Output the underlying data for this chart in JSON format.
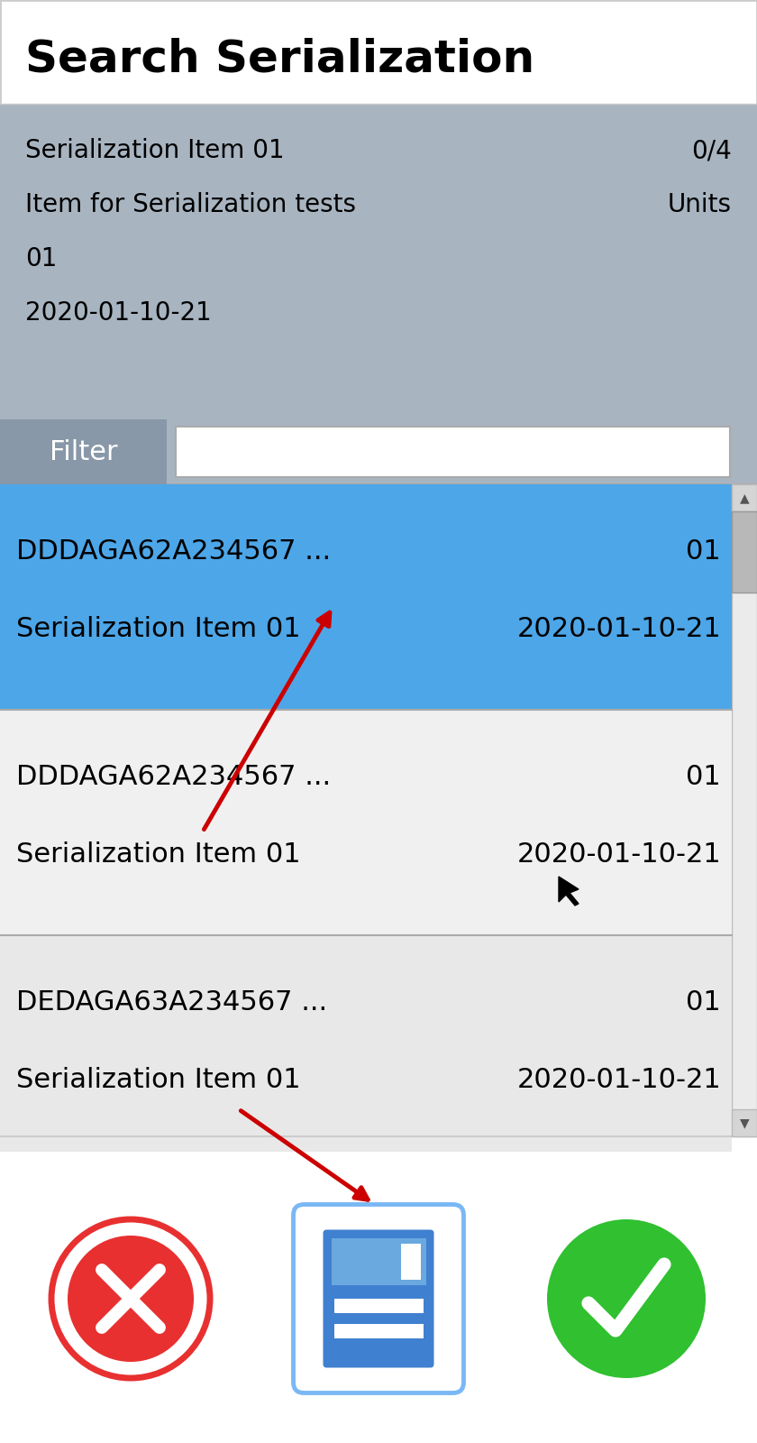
{
  "title": "Search Serialization",
  "title_fontsize": 36,
  "title_fontweight": "bold",
  "bg_color": "#ffffff",
  "header_bg": "#a8b4c0",
  "filter_label": "Filter",
  "filter_bg": "#a8b4c0",
  "filter_label_bg": "#8898a8",
  "input_bg": "#ffffff",
  "header_lines": [
    [
      "Serialization Item 01",
      "0/4"
    ],
    [
      "Item for Serialization tests",
      "Units"
    ],
    [
      "01",
      ""
    ],
    [
      "2020-01-10-21",
      ""
    ]
  ],
  "list_rows": [
    {
      "col1": "DDDAGA62A234567 ...",
      "col2": "01",
      "col3": "Serialization Item 01",
      "col4": "2020-01-10-21",
      "selected": true,
      "bg": "#4da6e8"
    },
    {
      "col1": "DDDAGA62A234567 ...",
      "col2": "01",
      "col3": "Serialization Item 01",
      "col4": "2020-01-10-21",
      "selected": false,
      "bg": "#f0f0f0"
    },
    {
      "col1": "DEDAGA63A234567 ...",
      "col2": "01",
      "col3": "Serialization Item 01",
      "col4": "2020-01-10-21",
      "selected": false,
      "bg": "#e8e8e8"
    }
  ],
  "text_color": "#000000",
  "white": "#ffffff",
  "cancel_color": "#e83030",
  "save_border": "#7ab8f5",
  "save_color": "#4080d0",
  "ok_color": "#30c030",
  "arrow_color": "#cc0000"
}
